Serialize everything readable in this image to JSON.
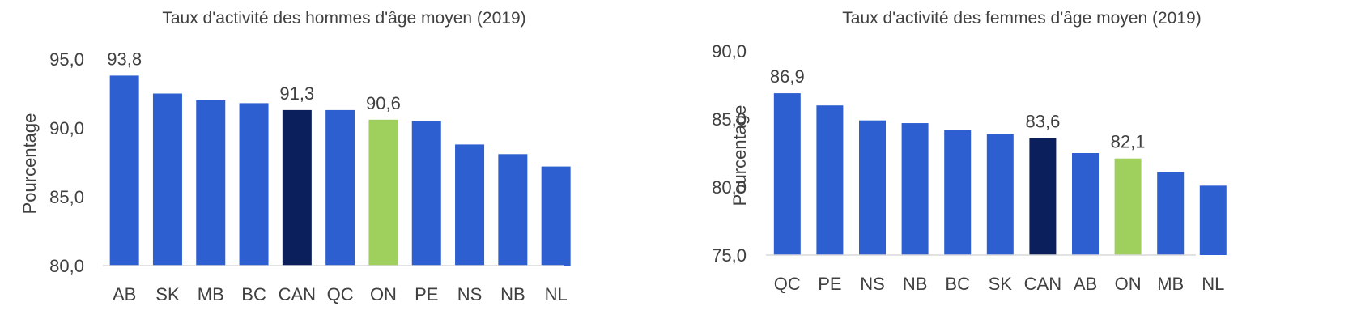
{
  "chart_data": [
    {
      "type": "bar",
      "title": "Taux d'activité des hommes d'âge moyen (2019)",
      "ylabel": "Pourcentage",
      "xlabel": "",
      "ylim": [
        80,
        95
      ],
      "yticks": [
        "80,0",
        "85,0",
        "90,0",
        "95,0"
      ],
      "ytick_values": [
        80,
        85,
        90,
        95
      ],
      "categories": [
        "AB",
        "SK",
        "MB",
        "BC",
        "CAN",
        "QC",
        "ON",
        "PE",
        "NS",
        "NB",
        "NL"
      ],
      "values": [
        93.8,
        92.5,
        92.0,
        91.8,
        91.3,
        91.3,
        90.6,
        90.5,
        88.8,
        88.1,
        87.2
      ],
      "bar_colors": [
        "#2e5fd0",
        "#2e5fd0",
        "#2e5fd0",
        "#2e5fd0",
        "#0a1f5c",
        "#2e5fd0",
        "#9fd05e",
        "#2e5fd0",
        "#2e5fd0",
        "#2e5fd0",
        "#2e5fd0"
      ],
      "data_labels": [
        {
          "category": "AB",
          "text": "93,8"
        },
        {
          "category": "CAN",
          "text": "91,3"
        },
        {
          "category": "ON",
          "text": "90,6"
        }
      ],
      "grid": false,
      "legend": "none"
    },
    {
      "type": "bar",
      "title": "Taux d'activité des femmes d'âge moyen (2019)",
      "ylabel": "Pourcentage",
      "xlabel": "",
      "ylim": [
        75,
        90
      ],
      "yticks": [
        "75,0",
        "80,0",
        "85,0",
        "90,0"
      ],
      "ytick_values": [
        75,
        80,
        85,
        90
      ],
      "categories": [
        "QC",
        "PE",
        "NS",
        "NB",
        "BC",
        "SK",
        "CAN",
        "AB",
        "ON",
        "MB",
        "NL"
      ],
      "values": [
        86.9,
        86.0,
        84.9,
        84.7,
        84.2,
        83.9,
        83.6,
        82.5,
        82.1,
        81.1,
        80.1
      ],
      "bar_colors": [
        "#2e5fd0",
        "#2e5fd0",
        "#2e5fd0",
        "#2e5fd0",
        "#2e5fd0",
        "#2e5fd0",
        "#0a1f5c",
        "#2e5fd0",
        "#9fd05e",
        "#2e5fd0",
        "#2e5fd0"
      ],
      "data_labels": [
        {
          "category": "QC",
          "text": "86,9"
        },
        {
          "category": "CAN",
          "text": "83,6"
        },
        {
          "category": "ON",
          "text": "82,1"
        }
      ],
      "grid": false,
      "legend": "none"
    }
  ]
}
